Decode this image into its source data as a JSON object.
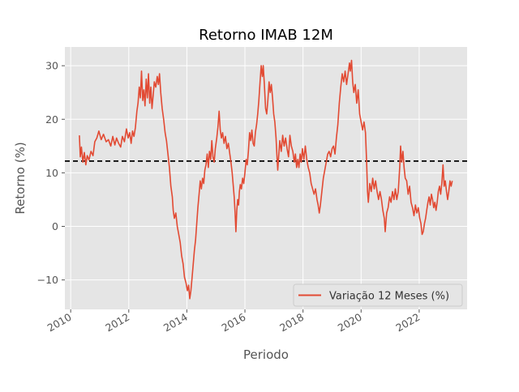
{
  "chart_data": {
    "type": "line",
    "title": "Retorno IMAB 12M",
    "xlabel": "Periodo",
    "ylabel": "Retorno (%)",
    "xlim": [
      2009.8,
      2023.65
    ],
    "ylim": [
      -15.5,
      33.5
    ],
    "x_ticks": [
      2010,
      2012,
      2014,
      2016,
      2018,
      2020,
      2022
    ],
    "x_tick_labels": [
      "2010",
      "2012",
      "2014",
      "2016",
      "2018",
      "2020",
      "2022"
    ],
    "y_ticks": [
      -10,
      0,
      10,
      20,
      30
    ],
    "y_tick_labels": [
      "−10",
      "0",
      "10",
      "20",
      "30"
    ],
    "grid": true,
    "legend_position": "lower-right",
    "reference_line": {
      "y": 12.2,
      "style": "dashed",
      "color": "#000000"
    },
    "series": [
      {
        "name": "Variação 12 Meses (%)",
        "color": "#E24A33",
        "points": [
          [
            2010.3,
            17.0
          ],
          [
            2010.33,
            13.0
          ],
          [
            2010.37,
            14.8
          ],
          [
            2010.42,
            12.0
          ],
          [
            2010.47,
            13.8
          ],
          [
            2010.52,
            11.5
          ],
          [
            2010.57,
            13.2
          ],
          [
            2010.63,
            12.4
          ],
          [
            2010.7,
            14.0
          ],
          [
            2010.77,
            13.2
          ],
          [
            2010.83,
            15.8
          ],
          [
            2010.9,
            16.5
          ],
          [
            2010.97,
            17.8
          ],
          [
            2011.05,
            16.2
          ],
          [
            2011.13,
            17.2
          ],
          [
            2011.22,
            15.8
          ],
          [
            2011.3,
            16.2
          ],
          [
            2011.38,
            15.0
          ],
          [
            2011.45,
            16.8
          ],
          [
            2011.52,
            15.2
          ],
          [
            2011.58,
            16.5
          ],
          [
            2011.65,
            15.5
          ],
          [
            2011.72,
            14.8
          ],
          [
            2011.78,
            16.8
          ],
          [
            2011.85,
            15.8
          ],
          [
            2011.92,
            18.2
          ],
          [
            2011.98,
            16.5
          ],
          [
            2012.03,
            17.5
          ],
          [
            2012.08,
            15.5
          ],
          [
            2012.13,
            17.8
          ],
          [
            2012.18,
            16.8
          ],
          [
            2012.23,
            18.5
          ],
          [
            2012.28,
            21.5
          ],
          [
            2012.32,
            23.0
          ],
          [
            2012.36,
            26.0
          ],
          [
            2012.4,
            24.0
          ],
          [
            2012.44,
            29.0
          ],
          [
            2012.48,
            23.5
          ],
          [
            2012.52,
            25.5
          ],
          [
            2012.56,
            22.5
          ],
          [
            2012.6,
            27.5
          ],
          [
            2012.64,
            24.0
          ],
          [
            2012.68,
            28.5
          ],
          [
            2012.72,
            23.0
          ],
          [
            2012.76,
            26.0
          ],
          [
            2012.8,
            22.0
          ],
          [
            2012.84,
            24.5
          ],
          [
            2012.88,
            27.0
          ],
          [
            2012.93,
            26.0
          ],
          [
            2012.98,
            28.0
          ],
          [
            2013.02,
            26.5
          ],
          [
            2013.06,
            28.5
          ],
          [
            2013.1,
            25.0
          ],
          [
            2013.15,
            22.0
          ],
          [
            2013.2,
            20.0
          ],
          [
            2013.25,
            17.5
          ],
          [
            2013.3,
            16.0
          ],
          [
            2013.35,
            13.5
          ],
          [
            2013.4,
            11.0
          ],
          [
            2013.45,
            7.5
          ],
          [
            2013.5,
            5.5
          ],
          [
            2013.53,
            3.0
          ],
          [
            2013.57,
            1.5
          ],
          [
            2013.62,
            2.5
          ],
          [
            2013.67,
            0.0
          ],
          [
            2013.72,
            -1.5
          ],
          [
            2013.77,
            -3.0
          ],
          [
            2013.82,
            -5.5
          ],
          [
            2013.87,
            -7.0
          ],
          [
            2013.92,
            -9.5
          ],
          [
            2013.97,
            -10.5
          ],
          [
            2014.02,
            -12.0
          ],
          [
            2014.06,
            -11.0
          ],
          [
            2014.1,
            -13.5
          ],
          [
            2014.14,
            -12.0
          ],
          [
            2014.18,
            -9.5
          ],
          [
            2014.22,
            -7.0
          ],
          [
            2014.26,
            -4.5
          ],
          [
            2014.3,
            -2.5
          ],
          [
            2014.34,
            0.5
          ],
          [
            2014.38,
            3.5
          ],
          [
            2014.42,
            6.0
          ],
          [
            2014.46,
            8.5
          ],
          [
            2014.5,
            7.0
          ],
          [
            2014.54,
            9.0
          ],
          [
            2014.58,
            8.0
          ],
          [
            2014.62,
            10.5
          ],
          [
            2014.66,
            11.5
          ],
          [
            2014.7,
            13.5
          ],
          [
            2014.74,
            11.0
          ],
          [
            2014.78,
            14.0
          ],
          [
            2014.82,
            12.5
          ],
          [
            2014.86,
            16.0
          ],
          [
            2014.9,
            13.0
          ],
          [
            2014.94,
            12.0
          ],
          [
            2014.98,
            14.5
          ],
          [
            2015.03,
            16.5
          ],
          [
            2015.07,
            18.5
          ],
          [
            2015.11,
            21.5
          ],
          [
            2015.15,
            18.0
          ],
          [
            2015.19,
            16.5
          ],
          [
            2015.23,
            17.5
          ],
          [
            2015.28,
            15.5
          ],
          [
            2015.33,
            16.8
          ],
          [
            2015.38,
            14.5
          ],
          [
            2015.43,
            15.5
          ],
          [
            2015.48,
            13.5
          ],
          [
            2015.52,
            12.0
          ],
          [
            2015.56,
            10.0
          ],
          [
            2015.6,
            7.5
          ],
          [
            2015.63,
            5.5
          ],
          [
            2015.66,
            2.5
          ],
          [
            2015.69,
            -1.0
          ],
          [
            2015.72,
            3.0
          ],
          [
            2015.75,
            5.0
          ],
          [
            2015.78,
            4.0
          ],
          [
            2015.81,
            6.5
          ],
          [
            2015.84,
            7.8
          ],
          [
            2015.88,
            7.0
          ],
          [
            2015.92,
            9.0
          ],
          [
            2015.96,
            8.0
          ],
          [
            2016.0,
            10.0
          ],
          [
            2016.04,
            12.5
          ],
          [
            2016.08,
            11.5
          ],
          [
            2016.12,
            14.0
          ],
          [
            2016.16,
            17.5
          ],
          [
            2016.2,
            16.0
          ],
          [
            2016.24,
            18.0
          ],
          [
            2016.28,
            15.5
          ],
          [
            2016.32,
            15.0
          ],
          [
            2016.36,
            17.5
          ],
          [
            2016.4,
            19.0
          ],
          [
            2016.44,
            21.0
          ],
          [
            2016.48,
            23.5
          ],
          [
            2016.52,
            27.0
          ],
          [
            2016.56,
            30.0
          ],
          [
            2016.6,
            28.0
          ],
          [
            2016.63,
            30.0
          ],
          [
            2016.67,
            26.5
          ],
          [
            2016.71,
            22.0
          ],
          [
            2016.75,
            21.0
          ],
          [
            2016.79,
            23.5
          ],
          [
            2016.83,
            27.0
          ],
          [
            2016.87,
            25.0
          ],
          [
            2016.91,
            26.5
          ],
          [
            2016.95,
            24.0
          ],
          [
            2016.99,
            21.0
          ],
          [
            2017.03,
            19.5
          ],
          [
            2017.07,
            16.5
          ],
          [
            2017.1,
            13.5
          ],
          [
            2017.13,
            10.5
          ],
          [
            2017.16,
            13.0
          ],
          [
            2017.2,
            16.0
          ],
          [
            2017.25,
            14.0
          ],
          [
            2017.3,
            17.0
          ],
          [
            2017.35,
            15.0
          ],
          [
            2017.4,
            16.5
          ],
          [
            2017.45,
            14.5
          ],
          [
            2017.5,
            13.0
          ],
          [
            2017.55,
            17.0
          ],
          [
            2017.6,
            15.0
          ],
          [
            2017.65,
            14.0
          ],
          [
            2017.7,
            12.0
          ],
          [
            2017.74,
            13.5
          ],
          [
            2017.78,
            11.0
          ],
          [
            2017.82,
            12.5
          ],
          [
            2017.86,
            11.0
          ],
          [
            2017.9,
            13.5
          ],
          [
            2017.94,
            12.0
          ],
          [
            2017.98,
            14.5
          ],
          [
            2018.03,
            12.5
          ],
          [
            2018.08,
            15.0
          ],
          [
            2018.13,
            12.5
          ],
          [
            2018.18,
            11.0
          ],
          [
            2018.23,
            10.0
          ],
          [
            2018.28,
            8.0
          ],
          [
            2018.33,
            7.0
          ],
          [
            2018.38,
            6.0
          ],
          [
            2018.43,
            7.0
          ],
          [
            2018.48,
            5.0
          ],
          [
            2018.52,
            4.0
          ],
          [
            2018.56,
            2.5
          ],
          [
            2018.6,
            4.0
          ],
          [
            2018.65,
            6.5
          ],
          [
            2018.7,
            9.0
          ],
          [
            2018.75,
            10.5
          ],
          [
            2018.8,
            12.0
          ],
          [
            2018.85,
            13.5
          ],
          [
            2018.9,
            14.0
          ],
          [
            2018.95,
            13.0
          ],
          [
            2019.0,
            14.5
          ],
          [
            2019.05,
            15.0
          ],
          [
            2019.1,
            13.5
          ],
          [
            2019.15,
            16.5
          ],
          [
            2019.2,
            19.0
          ],
          [
            2019.25,
            23.0
          ],
          [
            2019.3,
            26.0
          ],
          [
            2019.35,
            28.5
          ],
          [
            2019.4,
            27.0
          ],
          [
            2019.45,
            29.0
          ],
          [
            2019.5,
            26.5
          ],
          [
            2019.55,
            28.5
          ],
          [
            2019.6,
            30.5
          ],
          [
            2019.63,
            29.0
          ],
          [
            2019.67,
            31.0
          ],
          [
            2019.71,
            27.0
          ],
          [
            2019.75,
            25.0
          ],
          [
            2019.8,
            26.5
          ],
          [
            2019.85,
            23.0
          ],
          [
            2019.9,
            25.5
          ],
          [
            2019.95,
            21.0
          ],
          [
            2020.0,
            19.5
          ],
          [
            2020.05,
            18.0
          ],
          [
            2020.1,
            19.5
          ],
          [
            2020.15,
            17.5
          ],
          [
            2020.19,
            12.0
          ],
          [
            2020.22,
            6.5
          ],
          [
            2020.25,
            4.5
          ],
          [
            2020.3,
            8.0
          ],
          [
            2020.35,
            6.5
          ],
          [
            2020.4,
            9.0
          ],
          [
            2020.45,
            7.0
          ],
          [
            2020.5,
            8.5
          ],
          [
            2020.55,
            6.5
          ],
          [
            2020.6,
            5.0
          ],
          [
            2020.65,
            6.5
          ],
          [
            2020.7,
            5.0
          ],
          [
            2020.75,
            3.0
          ],
          [
            2020.8,
            1.5
          ],
          [
            2020.83,
            -1.0
          ],
          [
            2020.88,
            2.5
          ],
          [
            2020.93,
            3.5
          ],
          [
            2020.98,
            5.5
          ],
          [
            2021.03,
            4.5
          ],
          [
            2021.08,
            6.5
          ],
          [
            2021.13,
            5.0
          ],
          [
            2021.18,
            7.0
          ],
          [
            2021.23,
            5.0
          ],
          [
            2021.28,
            6.5
          ],
          [
            2021.33,
            11.0
          ],
          [
            2021.36,
            15.0
          ],
          [
            2021.4,
            12.0
          ],
          [
            2021.44,
            14.0
          ],
          [
            2021.48,
            11.0
          ],
          [
            2021.52,
            9.0
          ],
          [
            2021.57,
            8.5
          ],
          [
            2021.62,
            6.0
          ],
          [
            2021.67,
            7.5
          ],
          [
            2021.72,
            4.5
          ],
          [
            2021.77,
            3.5
          ],
          [
            2021.82,
            2.0
          ],
          [
            2021.87,
            4.0
          ],
          [
            2021.92,
            2.5
          ],
          [
            2021.97,
            3.5
          ],
          [
            2022.02,
            1.5
          ],
          [
            2022.06,
            0.5
          ],
          [
            2022.1,
            -1.5
          ],
          [
            2022.14,
            -1.0
          ],
          [
            2022.18,
            0.5
          ],
          [
            2022.22,
            1.5
          ],
          [
            2022.26,
            3.0
          ],
          [
            2022.3,
            4.5
          ],
          [
            2022.34,
            5.5
          ],
          [
            2022.38,
            4.0
          ],
          [
            2022.42,
            6.0
          ],
          [
            2022.46,
            5.0
          ],
          [
            2022.5,
            3.5
          ],
          [
            2022.54,
            4.5
          ],
          [
            2022.58,
            3.0
          ],
          [
            2022.62,
            4.5
          ],
          [
            2022.66,
            6.5
          ],
          [
            2022.7,
            7.5
          ],
          [
            2022.74,
            6.0
          ],
          [
            2022.78,
            8.0
          ],
          [
            2022.82,
            11.5
          ],
          [
            2022.86,
            7.5
          ],
          [
            2022.9,
            8.5
          ],
          [
            2022.94,
            6.5
          ],
          [
            2022.98,
            5.0
          ],
          [
            2023.02,
            6.5
          ],
          [
            2023.06,
            8.5
          ],
          [
            2023.1,
            7.5
          ],
          [
            2023.14,
            8.5
          ]
        ]
      }
    ]
  }
}
